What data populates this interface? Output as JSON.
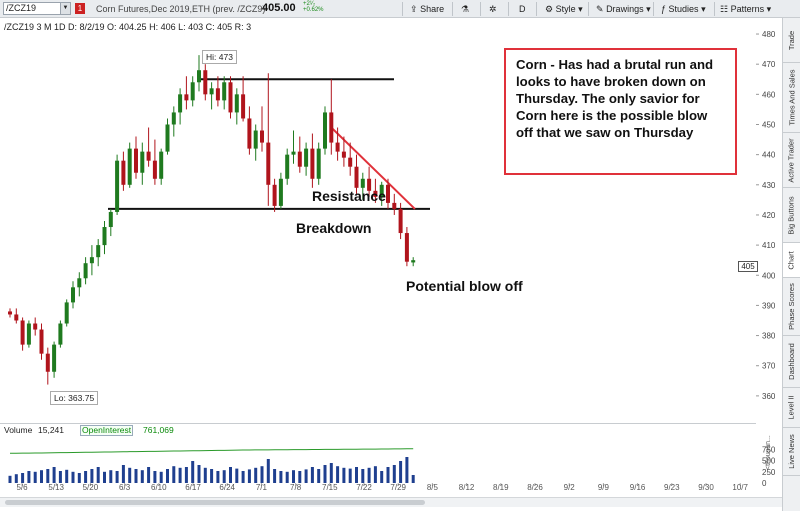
{
  "toolbar": {
    "symbol": "/ZCZ19",
    "flag": "1",
    "description": "Corn Futures,Dec 2019,ETH (prev. /ZCZ9)",
    "last_price": "405.00",
    "change": "+2¹⁄₂\n+0.62%",
    "change_top": "+2¹⁄₂",
    "change_bottom": "+0.62%",
    "buttons": [
      {
        "label": "Share",
        "icon": "share-icon"
      },
      {
        "label": "",
        "icon": "flask-icon"
      },
      {
        "label": "D",
        "icon": ""
      },
      {
        "label": "Style",
        "icon": "gear-icon"
      },
      {
        "label": "Drawings",
        "icon": "pencil-icon"
      },
      {
        "label": "Studies",
        "icon": "studies-icon"
      },
      {
        "label": "Patterns",
        "icon": "patterns-icon"
      }
    ]
  },
  "chart_header": "/ZCZ19 3 M 1D   D: 8/2/19   O: 404.25   H: 406   L: 403   C: 405   R: 3",
  "annotation_box": "Corn - Has had a brutal run and looks to have broken down on Thursday. The only savior for Corn here is the possible blow off that we saw on Thursday",
  "labels": {
    "resistance": "Resistance",
    "breakdown": "Breakdown",
    "blowoff": "Potential blow off",
    "hi": "Hi: 473",
    "lo": "Lo: 363.75",
    "current": "405"
  },
  "volume_bar": {
    "volume_label": "Volume",
    "volume_value": "15,241",
    "oi_label": "OpenInterest",
    "oi_value": "761,069",
    "unit": "<thousan..."
  },
  "right_tabs": [
    "Trade",
    "Times And Sales",
    "Active Trader",
    "Big Buttons",
    "Chart",
    "Phase Scores",
    "Dashboard",
    "Level II",
    "Live News"
  ],
  "colors": {
    "up_candle": "#1f7a1f",
    "down_candle": "#b0141c",
    "annotation_border": "#e0313a",
    "volume_bar": "#1f3f8f",
    "open_interest": "#2a9a2a"
  },
  "chart_data": {
    "type": "candlestick",
    "title": "/ZCZ19 3 M 1D",
    "ylim": [
      352,
      482
    ],
    "y_ticks": [
      360,
      370,
      380,
      390,
      400,
      410,
      420,
      430,
      440,
      450,
      460,
      470,
      480
    ],
    "x_tick_labels": [
      "5/6",
      "5/13",
      "5/20",
      "6/3",
      "6/10",
      "6/17",
      "6/24",
      "7/1",
      "7/8",
      "7/15",
      "7/22",
      "7/29",
      "8/5",
      "8/12",
      "8/19",
      "8/26",
      "9/2",
      "9/9",
      "9/16",
      "9/23",
      "9/30",
      "10/7"
    ],
    "ohlc": [
      [
        388,
        389,
        386,
        387
      ],
      [
        387,
        389,
        384,
        385
      ],
      [
        385,
        386,
        375,
        377
      ],
      [
        377,
        385,
        376,
        384
      ],
      [
        384,
        386,
        380,
        382
      ],
      [
        382,
        384,
        372,
        374
      ],
      [
        374,
        376,
        363.75,
        368
      ],
      [
        368,
        378,
        366,
        377
      ],
      [
        377,
        385,
        376,
        384
      ],
      [
        384,
        392,
        383,
        391
      ],
      [
        391,
        398,
        389,
        396
      ],
      [
        396,
        401,
        393,
        399
      ],
      [
        399,
        406,
        397,
        404
      ],
      [
        404,
        410,
        400,
        406
      ],
      [
        406,
        412,
        403,
        410
      ],
      [
        410,
        418,
        407,
        416
      ],
      [
        416,
        422,
        413,
        421
      ],
      [
        421,
        440,
        420,
        438
      ],
      [
        438,
        441,
        428,
        430
      ],
      [
        430,
        444,
        429,
        442
      ],
      [
        442,
        446,
        432,
        434
      ],
      [
        434,
        444,
        430,
        441
      ],
      [
        441,
        449,
        436,
        438
      ],
      [
        438,
        445,
        430,
        432
      ],
      [
        432,
        442,
        430,
        441
      ],
      [
        441,
        452,
        440,
        450
      ],
      [
        450,
        456,
        446,
        454
      ],
      [
        454,
        462,
        450,
        460
      ],
      [
        460,
        466,
        455,
        458
      ],
      [
        458,
        466,
        456,
        464
      ],
      [
        464,
        473,
        461,
        468
      ],
      [
        468,
        470,
        458,
        460
      ],
      [
        460,
        464,
        455,
        462
      ],
      [
        462,
        466,
        456,
        458
      ],
      [
        458,
        466,
        455,
        464
      ],
      [
        464,
        466,
        452,
        454
      ],
      [
        454,
        462,
        450,
        460
      ],
      [
        460,
        466,
        451,
        452
      ],
      [
        452,
        456,
        440,
        442
      ],
      [
        442,
        450,
        438,
        448
      ],
      [
        448,
        456,
        441,
        444
      ],
      [
        444,
        467,
        423,
        430
      ],
      [
        430,
        432,
        421,
        423
      ],
      [
        423,
        434,
        422,
        432
      ],
      [
        432,
        442,
        430,
        440
      ],
      [
        440,
        448,
        437,
        441
      ],
      [
        441,
        446,
        434,
        436
      ],
      [
        436,
        444,
        433,
        442
      ],
      [
        442,
        447,
        429,
        432
      ],
      [
        432,
        444,
        430,
        442
      ],
      [
        442,
        456,
        440,
        454
      ],
      [
        454,
        465,
        440,
        444
      ],
      [
        444,
        449,
        438,
        441
      ],
      [
        441,
        446,
        436,
        439
      ],
      [
        439,
        444,
        433,
        436
      ],
      [
        436,
        440,
        427,
        429
      ],
      [
        429,
        434,
        425,
        432
      ],
      [
        432,
        436,
        426,
        428
      ],
      [
        428,
        432,
        424,
        426
      ],
      [
        426,
        431,
        423,
        430
      ],
      [
        430,
        432,
        422,
        424
      ],
      [
        424,
        427,
        420,
        422
      ],
      [
        422,
        424,
        412,
        414
      ],
      [
        414,
        416,
        403,
        404.5
      ],
      [
        404.25,
        406,
        403,
        405
      ]
    ],
    "volume": [
      18,
      22,
      25,
      30,
      28,
      32,
      35,
      40,
      30,
      33,
      28,
      25,
      30,
      35,
      40,
      28,
      32,
      30,
      45,
      38,
      35,
      32,
      40,
      30,
      28,
      35,
      42,
      38,
      40,
      55,
      45,
      38,
      35,
      30,
      32,
      40,
      36,
      30,
      34,
      38,
      42,
      60,
      35,
      30,
      28,
      32,
      30,
      34,
      40,
      35,
      45,
      50,
      42,
      38,
      36,
      40,
      35,
      38,
      42,
      30,
      40,
      45,
      55,
      65,
      20
    ],
    "open_interest": [
      660,
      662,
      664,
      665,
      667,
      668,
      670,
      672,
      674,
      676,
      678,
      680,
      682,
      684,
      686,
      688,
      690,
      692,
      694,
      696,
      698,
      700,
      702,
      704,
      706,
      708,
      710,
      712,
      714,
      716,
      718,
      720,
      722,
      724,
      726,
      728,
      730,
      732,
      734,
      735,
      736,
      737,
      738,
      739,
      740,
      741,
      742,
      743,
      744,
      745,
      746,
      747,
      748,
      749,
      750,
      751,
      752,
      753,
      754,
      755,
      756,
      757,
      758,
      760,
      761
    ],
    "volume_ylim": [
      0,
      1000
    ],
    "volume_y_ticks": [
      0,
      250,
      500,
      750
    ],
    "levels": {
      "resistance_top": 465,
      "breakdown_support": 422
    },
    "resistance_trendline": {
      "from_bar": 51,
      "from_price": 449,
      "to_bar": 63,
      "to_price": 422
    }
  }
}
